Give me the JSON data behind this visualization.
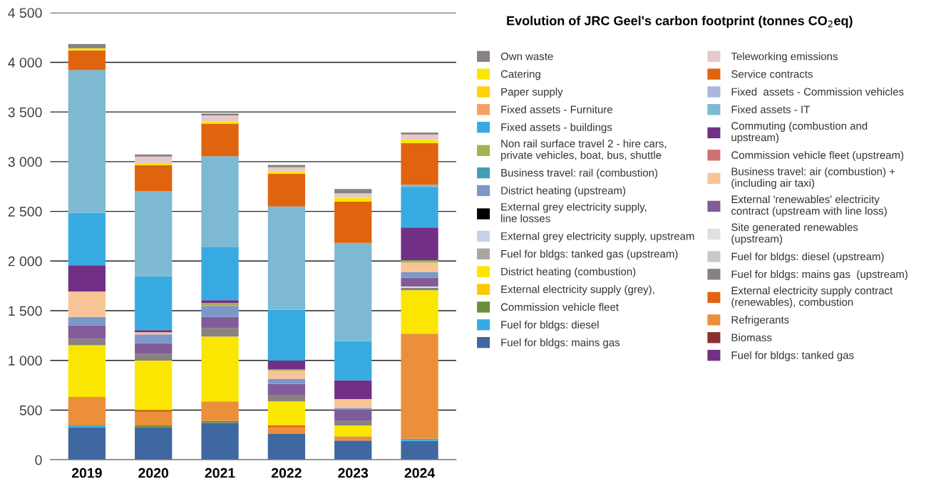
{
  "chart_data": {
    "type": "bar",
    "stacked": true,
    "title": "Evolution of JRC Geel's carbon footprint (tonnes CO$_{2}$eq)",
    "categories": [
      "2019",
      "2020",
      "2021",
      "2022",
      "2023",
      "2024"
    ],
    "ylim": [
      0,
      4500
    ],
    "yticks": [
      0,
      500,
      {
        "value": 1000,
        "label": "1 000"
      },
      {
        "value": 1500,
        "label": "1 500"
      },
      {
        "value": 2000,
        "label": "2 000"
      },
      {
        "value": 2500,
        "label": "2 500"
      },
      {
        "value": 3000,
        "label": "3 000"
      },
      {
        "value": 3500,
        "label": "3 500"
      },
      {
        "value": 4000,
        "label": "4 000"
      },
      {
        "value": 4500,
        "label": "4 500"
      }
    ],
    "grid": "y",
    "legend": "right",
    "series": [
      {
        "name": "Fuel for bldgs: mains gas",
        "color": "#3f67a0",
        "values": [
          325,
          325,
          371,
          259,
          193,
          190
        ]
      },
      {
        "name": "Fuel for bldgs: tanked gas",
        "color": "#713086",
        "values": [
          null,
          null,
          null,
          null,
          null,
          null
        ]
      },
      {
        "name": "Fuel for bldgs: diesel",
        "color": "#37abe1",
        "values": [
          21,
          null,
          null,
          null,
          null,
          21
        ]
      },
      {
        "name": "Biomass",
        "color": "#8b2f2f",
        "values": [
          null,
          null,
          null,
          null,
          null,
          null
        ]
      },
      {
        "name": "Commission vehicle fleet",
        "color": "#6b8e3a",
        "values": [
          null,
          21,
          22,
          null,
          null,
          null
        ]
      },
      {
        "name": "Refrigerants",
        "color": "#ec8f3a",
        "values": [
          286,
          132,
          195,
          66,
          44,
          1057
        ]
      },
      {
        "name": "External electricity supply (grey),",
        "color": "#ffc800",
        "values": [
          null,
          null,
          null,
          null,
          null,
          null
        ]
      },
      {
        "name": "External electricity supply contract\n(renewables), combustion",
        "color": "#e0640f",
        "values": [
          null,
          22,
          null,
          22,
          null,
          null
        ]
      },
      {
        "name": "District heating (combustion)",
        "color": "#fae600",
        "values": [
          520,
          498,
          652,
          241,
          109,
          439
        ]
      },
      {
        "name": "Fuel for bldgs: mains gas  (upstream)",
        "color": "#878281",
        "values": [
          66,
          66,
          87,
          66,
          44,
          22
        ]
      },
      {
        "name": "Fuel for bldgs: tanked gas (upstream)",
        "color": "#aaa5a0",
        "values": [
          null,
          null,
          null,
          null,
          null,
          null
        ]
      },
      {
        "name": "Fuel for bldgs: diesel (upstream)",
        "color": "#c8c8c8",
        "values": [
          null,
          null,
          null,
          null,
          null,
          null
        ]
      },
      {
        "name": "External grey electricity supply, upstream",
        "color": "#c8d0e8",
        "values": [
          null,
          null,
          null,
          null,
          null,
          null
        ]
      },
      {
        "name": "Site generated renewables\n(upstream)",
        "color": "#e0e0e0",
        "values": [
          null,
          null,
          null,
          null,
          null,
          15
        ]
      },
      {
        "name": "External grey electricity supply,\nline losses",
        "color": "#000000",
        "values": [
          null,
          null,
          null,
          null,
          null,
          null
        ]
      },
      {
        "name": "External 'renewables' electricity\ncontract (upstream with line loss)",
        "color": "#815c98",
        "values": [
          134,
          110,
          110,
          110,
          110,
          88
        ]
      },
      {
        "name": "District heating (upstream)",
        "color": "#7b98c8",
        "values": [
          85,
          87,
          110,
          51,
          22,
          58
        ]
      },
      {
        "name": "Business travel: air (combustion) +\n(including air taxi)",
        "color": "#f8c496",
        "values": [
          256,
          22,
          null,
          81,
          88,
          95
        ]
      },
      {
        "name": "Business travel: rail (combustion)",
        "color": "#41a0b4",
        "values": [
          null,
          null,
          null,
          null,
          null,
          null
        ]
      },
      {
        "name": "Commission vehicle fleet (upstream)",
        "color": "#d07070",
        "values": [
          null,
          null,
          8,
          null,
          null,
          null
        ]
      },
      {
        "name": "Non rail surface travel 2 - hire cars,\nprivate vehicles, boat, bus, shuttle",
        "color": "#a0b450",
        "values": [
          null,
          null,
          24,
          14,
          null,
          22
        ]
      },
      {
        "name": "Commuting (combustion and\nupstream)",
        "color": "#713086",
        "values": [
          264,
          22,
          27,
          88,
          190,
          330
        ]
      },
      {
        "name": "Fixed assets - buildings",
        "color": "#37abe1",
        "values": [
          528,
          542,
          533,
          512,
          396,
          409
        ]
      },
      {
        "name": "Fixed assets - IT",
        "color": "#7db9d2",
        "values": [
          1437,
          855,
          915,
          1039,
          987,
          22
        ]
      },
      {
        "name": "Fixed assets - Furniture",
        "color": "#f5a064",
        "values": [
          null,
          null,
          null,
          null,
          null,
          null
        ]
      },
      {
        "name": "Fixed  assets - Commission vehicles",
        "color": "#aab8dc",
        "values": [
          null,
          null,
          null,
          null,
          null,
          null
        ]
      },
      {
        "name": "Paper supply",
        "color": "#ffd200",
        "values": [
          null,
          null,
          null,
          null,
          null,
          null
        ]
      },
      {
        "name": "Service contracts",
        "color": "#e0640f",
        "values": [
          198,
          261,
          329,
          329,
          417,
          419
        ]
      },
      {
        "name": "Catering",
        "color": "#fae600",
        "values": [
          22,
          22,
          22,
          24,
          37,
          36
        ]
      },
      {
        "name": "Teleworking emissions",
        "color": "#e6c8c8",
        "values": [
          null,
          66,
          61,
          42,
          44,
          50
        ]
      },
      {
        "name": "Own waste",
        "color": "#878281",
        "values": [
          43,
          22,
          19,
          22,
          44,
          21
        ]
      }
    ]
  }
}
